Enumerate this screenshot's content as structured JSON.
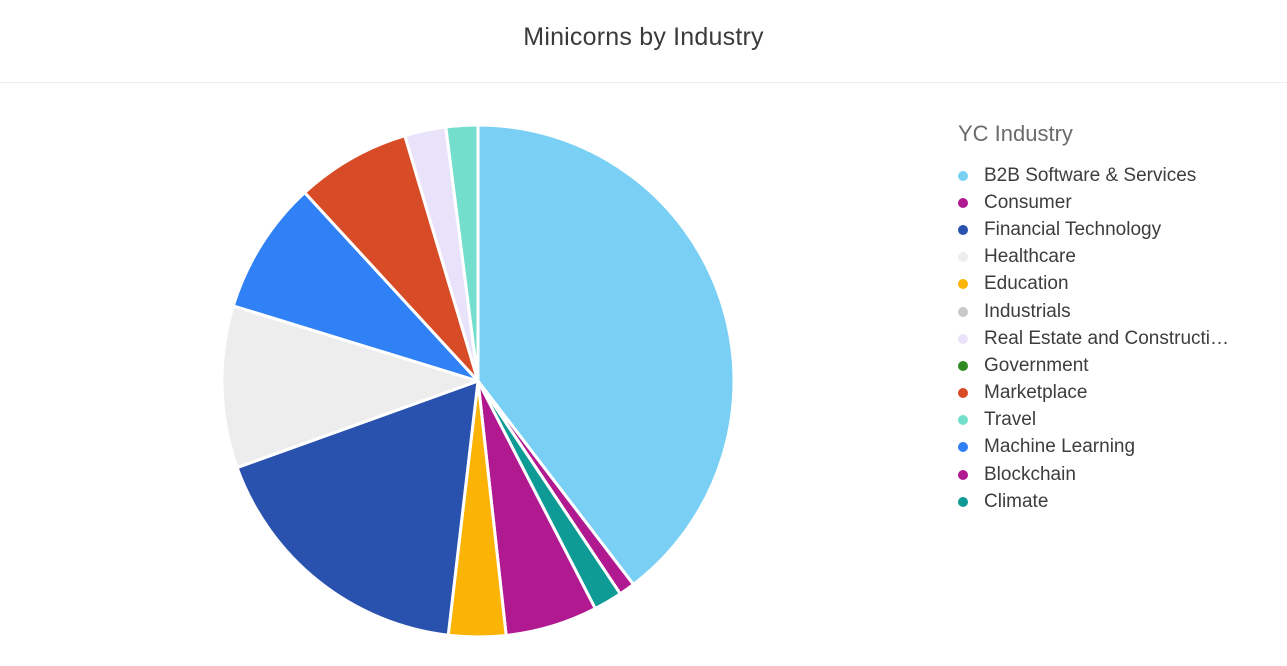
{
  "chart_data": {
    "type": "pie",
    "title": "Minicorns by Industry",
    "legend_title": "YC Industry",
    "legend_position": "right",
    "slices": [
      {
        "label": "B2B Software & Services",
        "value": 39.5,
        "color": "#79d0f4"
      },
      {
        "label": "Consumer",
        "value": 1.0,
        "color": "#b0198f"
      },
      {
        "label": "Climate",
        "value": 1.8,
        "color": "#0f9b95"
      },
      {
        "label": "Blockchain",
        "value": 5.8,
        "color": "#b0198f"
      },
      {
        "label": "Education",
        "value": 3.6,
        "color": "#fbb405"
      },
      {
        "label": "Financial Technology",
        "value": 17.6,
        "color": "#2951ae"
      },
      {
        "label": "Healthcare",
        "value": 10.2,
        "color": "#ededed"
      },
      {
        "label": "Machine Learning",
        "value": 8.4,
        "color": "#3080f6"
      },
      {
        "label": "Marketplace",
        "value": 7.2,
        "color": "#d74c26"
      },
      {
        "label": "Real Estate and Construction",
        "value": 2.6,
        "color": "#e9e2fb"
      },
      {
        "label": "Travel",
        "value": 2.0,
        "color": "#72decb"
      },
      {
        "label": "Industrials",
        "value": 0.0,
        "color": "#c9c9c9"
      },
      {
        "label": "Government",
        "value": 0.0,
        "color": "#2e8b22"
      }
    ]
  },
  "legend": {
    "title": "YC Industry",
    "items": [
      {
        "label": "B2B Software & Services",
        "color": "#79d0f4"
      },
      {
        "label": "Consumer",
        "color": "#b0198f"
      },
      {
        "label": "Financial Technology",
        "color": "#2951ae"
      },
      {
        "label": "Healthcare",
        "color": "#ededed"
      },
      {
        "label": "Education",
        "color": "#fbb405"
      },
      {
        "label": "Industrials",
        "color": "#c9c9c9"
      },
      {
        "label": "Real Estate and Constructi…",
        "color": "#e9e2fb"
      },
      {
        "label": "Government",
        "color": "#2e8b22"
      },
      {
        "label": "Marketplace",
        "color": "#d74c26"
      },
      {
        "label": "Travel",
        "color": "#72decb"
      },
      {
        "label": "Machine Learning",
        "color": "#3080f6"
      },
      {
        "label": "Blockchain",
        "color": "#b0198f"
      },
      {
        "label": "Climate",
        "color": "#0f9b95"
      }
    ]
  }
}
